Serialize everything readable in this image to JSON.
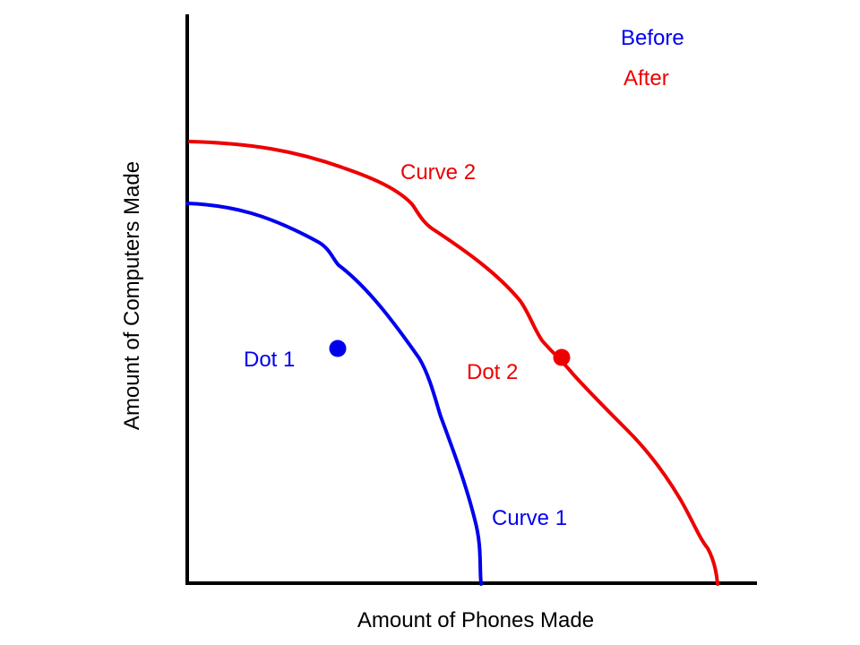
{
  "colors": {
    "before": "#0000ee",
    "after": "#ee0000",
    "axis": "#000000",
    "background": "#ffffff"
  },
  "legend": {
    "before": "Before",
    "after": "After"
  },
  "axes": {
    "x_label": "Amount of Phones Made",
    "y_label": "Amount of Computers Made"
  },
  "curves": {
    "curve_1": {
      "label": "Curve 1",
      "legend_group": "Before"
    },
    "curve_2": {
      "label": "Curve 2",
      "legend_group": "After"
    }
  },
  "dots": {
    "dot_1": {
      "label": "Dot 1",
      "legend_group": "Before"
    },
    "dot_2": {
      "label": "Dot 2",
      "legend_group": "After"
    }
  }
}
